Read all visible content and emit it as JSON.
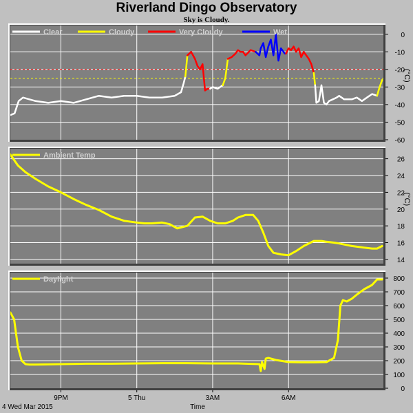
{
  "page": {
    "title": "Riverland Dingo Observatory",
    "subtitle": "Sky is Cloudy."
  },
  "colors": {
    "background": "#c0c0c0",
    "plot_bg": "#808080",
    "grid": "#ffffff",
    "clear": "#ffffff",
    "cloudy": "#ffff00",
    "very_cloudy": "#ff0000",
    "wet": "#0000ff",
    "threshold_cloudy": "#ffff00",
    "threshold_very_cloudy": "#ff0000"
  },
  "chart_data": [
    {
      "type": "line",
      "name": "sky",
      "ylabel": "(°C)",
      "ylim": [
        -60,
        5
      ],
      "yticks": [
        0,
        -10,
        -20,
        -30,
        -40,
        -50,
        -60
      ],
      "grid": true,
      "legend": [
        {
          "label": "Clear",
          "color": "#ffffff"
        },
        {
          "label": "Cloudy",
          "color": "#ffff00"
        },
        {
          "label": "Very Cloudy",
          "color": "#ff0000"
        },
        {
          "label": "Wet",
          "color": "#0000ff"
        }
      ],
      "thresholds": [
        {
          "value": -20,
          "color": "#ff0000"
        },
        {
          "value": -25,
          "color": "#ffff00"
        }
      ],
      "x": [
        19.0,
        19.17,
        19.33,
        19.5,
        19.75,
        20.0,
        20.5,
        21.0,
        21.5,
        22.0,
        22.5,
        23.0,
        23.5,
        24.0,
        24.5,
        25.0,
        25.5,
        25.75,
        25.85,
        25.92,
        26.0,
        26.15,
        26.3,
        26.4,
        26.5,
        26.6,
        26.7,
        26.8,
        26.9,
        27.0,
        27.2,
        27.4,
        27.5,
        27.6,
        27.75,
        27.9,
        28.0,
        28.1,
        28.2,
        28.3,
        28.5,
        28.7,
        28.85,
        28.9,
        29.0,
        29.1,
        29.2,
        29.3,
        29.4,
        29.5,
        29.6,
        29.7,
        29.8,
        29.85,
        29.9,
        30.0,
        30.1,
        30.2,
        30.3,
        30.4,
        30.5,
        30.6,
        30.7,
        30.8,
        30.9,
        31.0,
        31.05,
        31.1,
        31.2,
        31.3,
        31.4,
        31.5,
        31.6,
        31.75,
        31.9,
        32.0,
        32.2,
        32.5,
        32.7,
        32.9,
        33.1,
        33.3,
        33.5,
        33.6,
        33.7
      ],
      "y": [
        -46,
        -45,
        -38,
        -36,
        -37,
        -38,
        -39,
        -38,
        -39,
        -37,
        -35,
        -36,
        -35,
        -35,
        -36,
        -36,
        -35,
        -33,
        -28,
        -24,
        -12,
        -10,
        -14,
        -18,
        -20,
        -17,
        -32,
        -31,
        -31,
        -30,
        -31,
        -29,
        -25,
        -14,
        -13,
        -11,
        -9,
        -10,
        -10,
        -12,
        -9,
        -10,
        -12,
        -8,
        -5,
        -13,
        -7,
        -3,
        -12,
        0,
        -15,
        -8,
        -10,
        -11,
        -11,
        -8,
        -9,
        -7,
        -10,
        -8,
        -13,
        -10,
        -12,
        -14,
        -17,
        -22,
        -29,
        -39,
        -38,
        -29,
        -39,
        -40,
        -38,
        -37,
        -36,
        -35,
        -37,
        -37,
        -36,
        -38,
        -36,
        -34,
        -35,
        -30,
        -26
      ],
      "segments": [
        {
          "state": "clear",
          "from": 0,
          "to": 19
        },
        {
          "state": "cloudy",
          "from": 19,
          "to": 20
        },
        {
          "state": "very_cloudy",
          "from": 20,
          "to": 28
        },
        {
          "state": "clear",
          "from": 28,
          "to": 31
        },
        {
          "state": "cloudy",
          "from": 31,
          "to": 33
        },
        {
          "state": "very_cloudy",
          "from": 33,
          "to": 41
        },
        {
          "state": "wet",
          "from": 41,
          "to": 54
        },
        {
          "state": "very_cloudy",
          "from": 54,
          "to": 65
        },
        {
          "state": "cloudy",
          "from": 65,
          "to": 66
        },
        {
          "state": "clear",
          "from": 66,
          "to": 82
        },
        {
          "state": "cloudy",
          "from": 82,
          "to": 84
        }
      ]
    },
    {
      "type": "line",
      "name": "ambient",
      "ylabel": "(°C)",
      "ylim": [
        13.5,
        27.2
      ],
      "yticks": [
        14,
        16,
        18,
        20,
        22,
        24,
        26
      ],
      "grid": true,
      "legend": [
        {
          "label": "Ambient Temp",
          "color": "#ffff00"
        }
      ],
      "series": [
        {
          "name": "Ambient Temp",
          "color": "#ffff00",
          "x": [
            19.0,
            19.3,
            19.6,
            20.0,
            20.5,
            21.0,
            21.5,
            22.0,
            22.5,
            23.0,
            23.5,
            24.0,
            24.3,
            24.6,
            25.0,
            25.3,
            25.6,
            26.0,
            26.3,
            26.6,
            26.9,
            27.2,
            27.5,
            27.8,
            28.0,
            28.3,
            28.6,
            28.8,
            29.0,
            29.2,
            29.4,
            29.7,
            30.0,
            30.3,
            30.6,
            31.0,
            31.3,
            31.5,
            31.8,
            32.0,
            32.5,
            33.0,
            33.3,
            33.5,
            33.7
          ],
          "y": [
            26.5,
            25.2,
            24.4,
            23.6,
            22.7,
            22.0,
            21.2,
            20.5,
            19.9,
            19.1,
            18.6,
            18.4,
            18.3,
            18.3,
            18.4,
            18.2,
            17.7,
            18.0,
            19.0,
            19.1,
            18.6,
            18.3,
            18.3,
            18.6,
            19.0,
            19.3,
            19.3,
            18.6,
            17.2,
            15.6,
            14.8,
            14.6,
            14.5,
            15.0,
            15.6,
            16.2,
            16.2,
            16.1,
            16.0,
            15.9,
            15.6,
            15.4,
            15.3,
            15.3,
            15.6
          ]
        }
      ]
    },
    {
      "type": "line",
      "name": "daylight",
      "ylim": [
        0,
        840
      ],
      "yticks": [
        0,
        100,
        200,
        300,
        400,
        500,
        600,
        700,
        800
      ],
      "grid": true,
      "legend": [
        {
          "label": "Daylight",
          "color": "#ffff00"
        }
      ],
      "xticks": [
        "9PM",
        "5 Thu",
        "3AM",
        "6AM"
      ],
      "xlabel": "Time",
      "date_label": "4 Wed Mar 2015",
      "series": [
        {
          "name": "Daylight",
          "color": "#ffff00",
          "x": [
            19.0,
            19.15,
            19.3,
            19.45,
            19.6,
            19.75,
            20.0,
            21.0,
            22.0,
            23.0,
            24.0,
            25.0,
            26.0,
            27.0,
            28.0,
            28.85,
            28.9,
            28.95,
            29.05,
            29.1,
            29.2,
            29.5,
            30.0,
            30.5,
            31.0,
            31.5,
            31.8,
            31.95,
            32.05,
            32.15,
            32.3,
            32.5,
            32.7,
            33.0,
            33.3,
            33.5,
            33.7
          ],
          "y": [
            550,
            500,
            300,
            200,
            175,
            172,
            172,
            175,
            178,
            178,
            180,
            182,
            182,
            180,
            180,
            175,
            125,
            190,
            140,
            215,
            220,
            205,
            190,
            188,
            188,
            190,
            220,
            350,
            600,
            640,
            630,
            650,
            680,
            720,
            750,
            790,
            790
          ]
        }
      ]
    }
  ]
}
